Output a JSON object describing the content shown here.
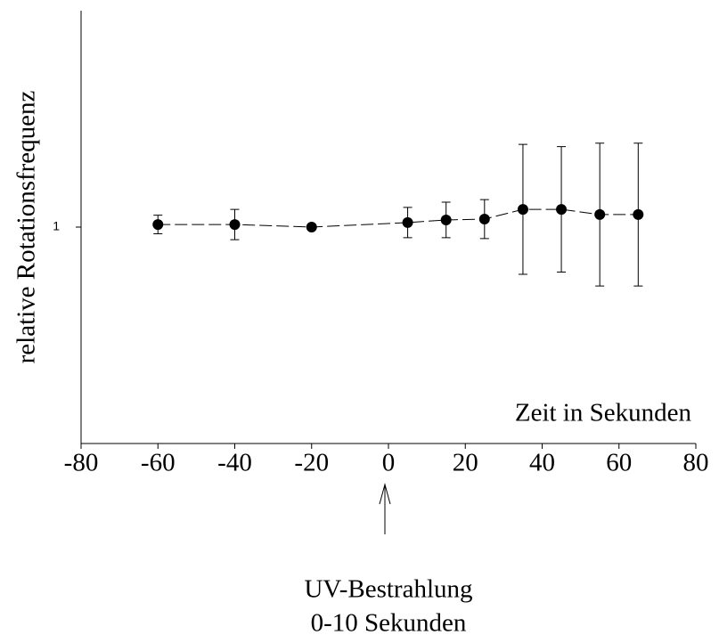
{
  "chart_data": {
    "type": "scatter",
    "ylabel": "relative Rotationsfrequenz",
    "xlabel": "Zeit in Sekunden",
    "annotation": [
      "UV-Bestrahlung",
      "0-10 Sekunden"
    ],
    "annotation_x": 0,
    "x": [
      -60,
      -40,
      -20,
      5,
      15,
      25,
      35,
      45,
      55,
      65
    ],
    "series": [
      {
        "color": "#000000",
        "values": [
          1.012,
          1.012,
          1.0,
          1.021,
          1.033,
          1.037,
          1.082,
          1.082,
          1.058,
          1.058
        ],
        "errors": [
          0.043,
          0.07,
          null,
          0.07,
          0.082,
          0.09,
          0.3,
          0.29,
          0.33,
          0.33
        ]
      }
    ],
    "xlim": [
      -80,
      80
    ],
    "xticks": [
      -80,
      -60,
      -40,
      -20,
      0,
      20,
      40,
      60,
      80
    ],
    "ylim": [
      0,
      2
    ],
    "yticks": [
      1
    ]
  }
}
